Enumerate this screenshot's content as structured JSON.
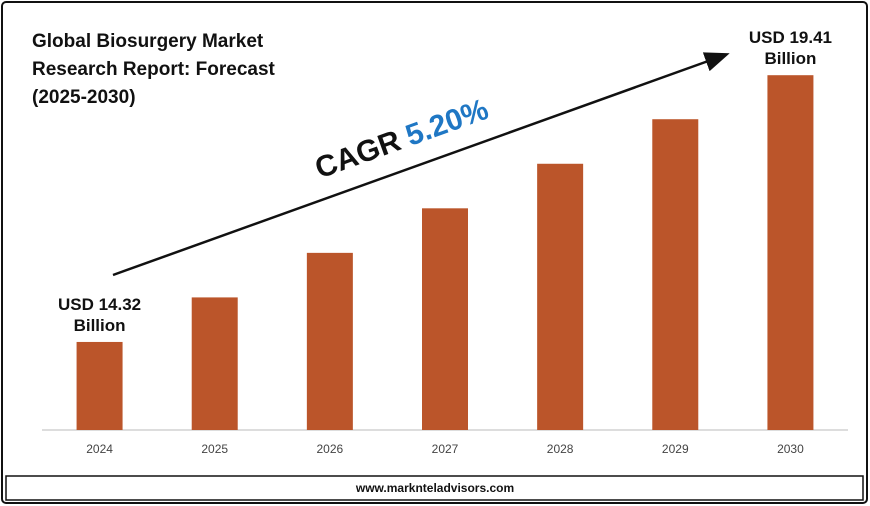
{
  "chart_data": {
    "type": "bar",
    "title": "Global Biosurgery Market Research Report: Forecast (2025-2030)",
    "categories": [
      "2024",
      "2025",
      "2026",
      "2027",
      "2028",
      "2029",
      "2030"
    ],
    "values": [
      14.32,
      15.17,
      16.02,
      16.87,
      17.72,
      18.57,
      19.41
    ],
    "value_labels": [
      "USD 14.32 Billion",
      null,
      null,
      null,
      null,
      null,
      "USD 19.41 Billion"
    ],
    "color": "#bb552a",
    "ylim": [
      12.64,
      19.7
    ],
    "annotations": [
      "CAGR",
      "5.20%"
    ],
    "footer": "www.marknteladvisors.com"
  }
}
